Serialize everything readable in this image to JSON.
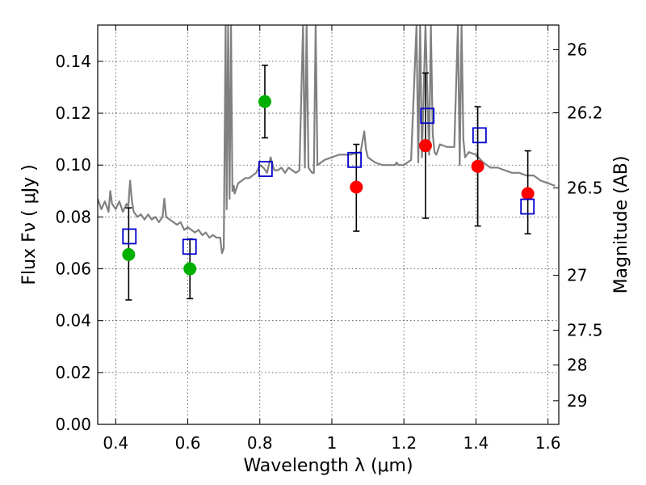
{
  "chart_data": {
    "type": "scatter",
    "title": "",
    "xlabel": "Wavelength  λ (μm)",
    "ylabel": "Flux  Fν  ( μJy )",
    "ylabel_right": "Magnitude (AB)",
    "xlim": [
      0.35,
      1.63
    ],
    "ylim": [
      0.0,
      0.154
    ],
    "grid": true,
    "xticks": [
      0.4,
      0.6,
      0.8,
      1.0,
      1.2,
      1.4,
      1.6
    ],
    "xtick_labels": [
      "0.4",
      "0.6",
      "0.8",
      "1",
      "1.2",
      "1.4",
      "1.6"
    ],
    "yticks": [
      0.0,
      0.02,
      0.04,
      0.06,
      0.08,
      0.1,
      0.12,
      0.14
    ],
    "ytick_labels": [
      "0.00",
      "0.02",
      "0.04",
      "0.06",
      "0.08",
      "0.10",
      "0.12",
      "0.14"
    ],
    "right_ticks": [
      {
        "label": "26",
        "flux": 0.1445
      },
      {
        "label": "26.2",
        "flux": 0.1202
      },
      {
        "label": "26.5",
        "flux": 0.0912
      },
      {
        "label": "27",
        "flux": 0.0575
      },
      {
        "label": "27.5",
        "flux": 0.0363
      },
      {
        "label": "28",
        "flux": 0.0229
      },
      {
        "label": "29",
        "flux": 0.0091
      }
    ],
    "series": [
      {
        "color": "#00b000",
        "marker": "filled-circle",
        "x": [
          0.436,
          0.606,
          0.814
        ],
        "y": [
          0.0655,
          0.06,
          0.1245
        ],
        "yerr_low": [
          0.048,
          0.0485,
          0.1105
        ],
        "yerr_high": [
          0.0835,
          0.0715,
          0.1385
        ]
      },
      {
        "color": "#ff0000",
        "marker": "filled-circle",
        "x": [
          1.068,
          1.26,
          1.405,
          1.544
        ],
        "y": [
          0.0915,
          0.1075,
          0.0995,
          0.089
        ],
        "yerr_low": [
          0.0745,
          0.0795,
          0.0765,
          0.0735
        ],
        "yerr_high": [
          0.108,
          0.1355,
          0.1225,
          0.1055
        ]
      },
      {
        "color": "#0000cc",
        "marker": "open-square",
        "x": [
          0.438,
          0.605,
          0.816,
          1.063,
          1.265,
          1.41,
          1.543
        ],
        "y": [
          0.0725,
          0.0685,
          0.0985,
          0.102,
          0.119,
          0.1115,
          0.084
        ]
      },
      {
        "color": "#808080",
        "marker": "line",
        "x": [
          0.35,
          0.36,
          0.37,
          0.38,
          0.385,
          0.39,
          0.4,
          0.41,
          0.42,
          0.43,
          0.435,
          0.44,
          0.445,
          0.45,
          0.46,
          0.47,
          0.48,
          0.49,
          0.5,
          0.51,
          0.52,
          0.53,
          0.535,
          0.54,
          0.55,
          0.56,
          0.57,
          0.58,
          0.59,
          0.6,
          0.61,
          0.62,
          0.63,
          0.64,
          0.65,
          0.66,
          0.67,
          0.68,
          0.69,
          0.695,
          0.7,
          0.705,
          0.708,
          0.712,
          0.716,
          0.72,
          0.724,
          0.728,
          0.73,
          0.74,
          0.75,
          0.76,
          0.77,
          0.78,
          0.79,
          0.8,
          0.81,
          0.82,
          0.83,
          0.84,
          0.85,
          0.86,
          0.87,
          0.88,
          0.89,
          0.9,
          0.91,
          0.92,
          0.925,
          0.93,
          0.935,
          0.94,
          0.945,
          0.95,
          0.955,
          0.96,
          0.97,
          0.98,
          1.0,
          1.02,
          1.05,
          1.08,
          1.09,
          1.095,
          1.1,
          1.12,
          1.14,
          1.16,
          1.175,
          1.18,
          1.185,
          1.2,
          1.22,
          1.235,
          1.24,
          1.245,
          1.25,
          1.26,
          1.27,
          1.275,
          1.28,
          1.285,
          1.29,
          1.3,
          1.32,
          1.34,
          1.35,
          1.355,
          1.36,
          1.365,
          1.37,
          1.38,
          1.4,
          1.42,
          1.44,
          1.46,
          1.48,
          1.5,
          1.52,
          1.54,
          1.56,
          1.58,
          1.6,
          1.62
        ],
        "y": [
          0.087,
          0.083,
          0.086,
          0.082,
          0.09,
          0.085,
          0.083,
          0.086,
          0.082,
          0.085,
          0.084,
          0.094,
          0.086,
          0.082,
          0.08,
          0.081,
          0.079,
          0.081,
          0.079,
          0.08,
          0.078,
          0.08,
          0.087,
          0.08,
          0.079,
          0.078,
          0.077,
          0.078,
          0.075,
          0.076,
          0.075,
          0.074,
          0.075,
          0.073,
          0.074,
          0.072,
          0.073,
          0.072,
          0.072,
          0.066,
          0.068,
          0.154,
          0.083,
          0.154,
          0.087,
          0.154,
          0.09,
          0.092,
          0.089,
          0.093,
          0.094,
          0.095,
          0.095,
          0.096,
          0.097,
          0.1,
          0.099,
          0.097,
          0.103,
          0.098,
          0.098,
          0.099,
          0.097,
          0.099,
          0.098,
          0.097,
          0.098,
          0.154,
          0.099,
          0.154,
          0.099,
          0.098,
          0.097,
          0.097,
          0.154,
          0.1,
          0.101,
          0.102,
          0.103,
          0.104,
          0.104,
          0.105,
          0.113,
          0.106,
          0.103,
          0.101,
          0.1,
          0.1,
          0.1,
          0.101,
          0.1,
          0.1,
          0.102,
          0.154,
          0.101,
          0.154,
          0.103,
          0.154,
          0.104,
          0.154,
          0.112,
          0.105,
          0.104,
          0.108,
          0.107,
          0.107,
          0.154,
          0.1,
          0.154,
          0.11,
          0.103,
          0.105,
          0.104,
          0.101,
          0.099,
          0.099,
          0.098,
          0.097,
          0.097,
          0.096,
          0.096,
          0.094,
          0.093,
          0.092
        ]
      }
    ]
  }
}
